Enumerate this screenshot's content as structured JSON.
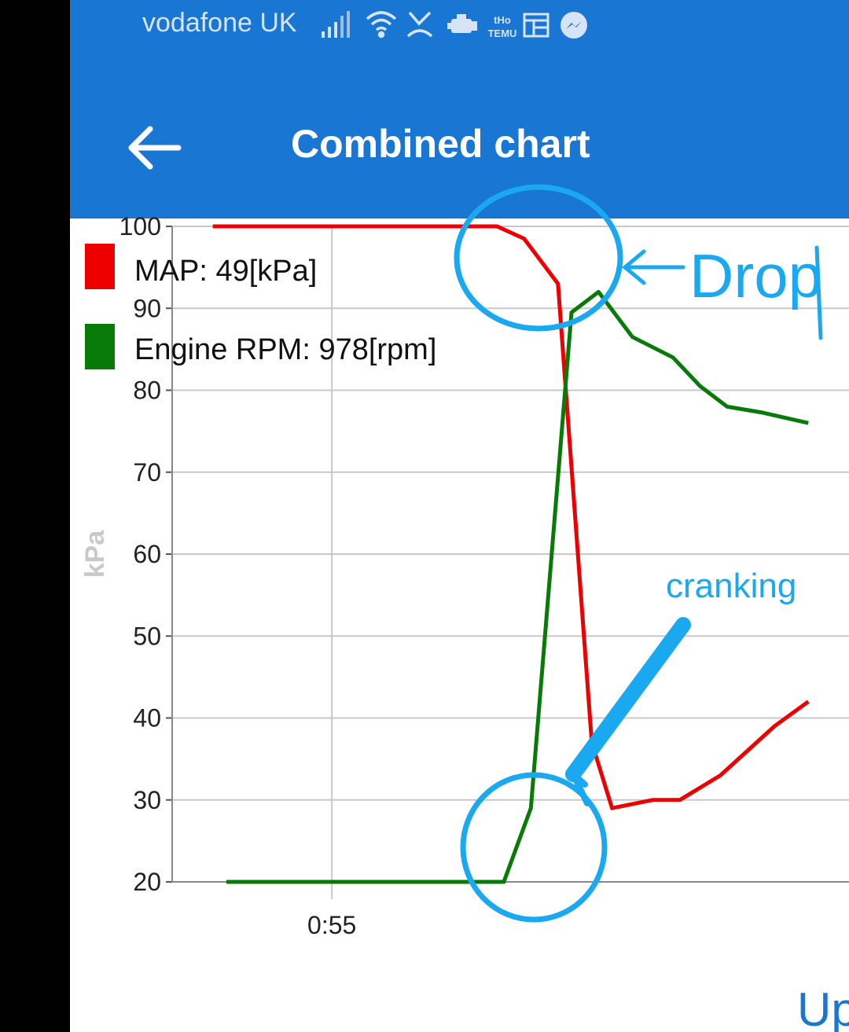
{
  "status_bar": {
    "carrier": "vodafone UK",
    "icons": [
      "signal-icon",
      "wifi-icon",
      "missed-call-icon",
      "engine-icon",
      "temu-icon",
      "calendar-icon",
      "messenger-icon"
    ],
    "temu_text": [
      "tHo",
      "TEMU"
    ]
  },
  "app_bar": {
    "title": "Combined chart",
    "back_icon": "arrow-left-icon"
  },
  "colors": {
    "app_bar": "#1976d2",
    "map": "#ee0000",
    "rpm": "#077a07",
    "annotation": "#1aa9f0"
  },
  "annotations": {
    "drop": "Drop",
    "cranking": "cranking"
  },
  "bottom_button": {
    "label": "Up"
  },
  "chart_data": {
    "type": "line",
    "ylabel": "kPa",
    "ylim": [
      20,
      100
    ],
    "yticks": [
      "100",
      "90",
      "80",
      "70",
      "60",
      "50",
      "40",
      "30",
      "20"
    ],
    "xticks": [
      "0:55"
    ],
    "grid": true,
    "legend_position": "top-left",
    "series": [
      {
        "name": "MAP: 49[kPa]",
        "x": [
          0.06,
          0.48,
          0.52,
          0.57,
          0.62,
          0.65,
          0.71,
          0.75,
          0.81,
          0.89,
          0.94
        ],
        "y": [
          100,
          100,
          98.5,
          93,
          37,
          29,
          30,
          30,
          33,
          39,
          42
        ]
      },
      {
        "name": "Engine RPM: 978[rpm]",
        "x": [
          0.08,
          0.49,
          0.53,
          0.59,
          0.63,
          0.68,
          0.74,
          0.78,
          0.82,
          0.87,
          0.94
        ],
        "y": [
          20,
          20,
          29,
          89.5,
          92,
          86.5,
          84,
          80.5,
          78,
          77.3,
          76
        ]
      }
    ]
  }
}
